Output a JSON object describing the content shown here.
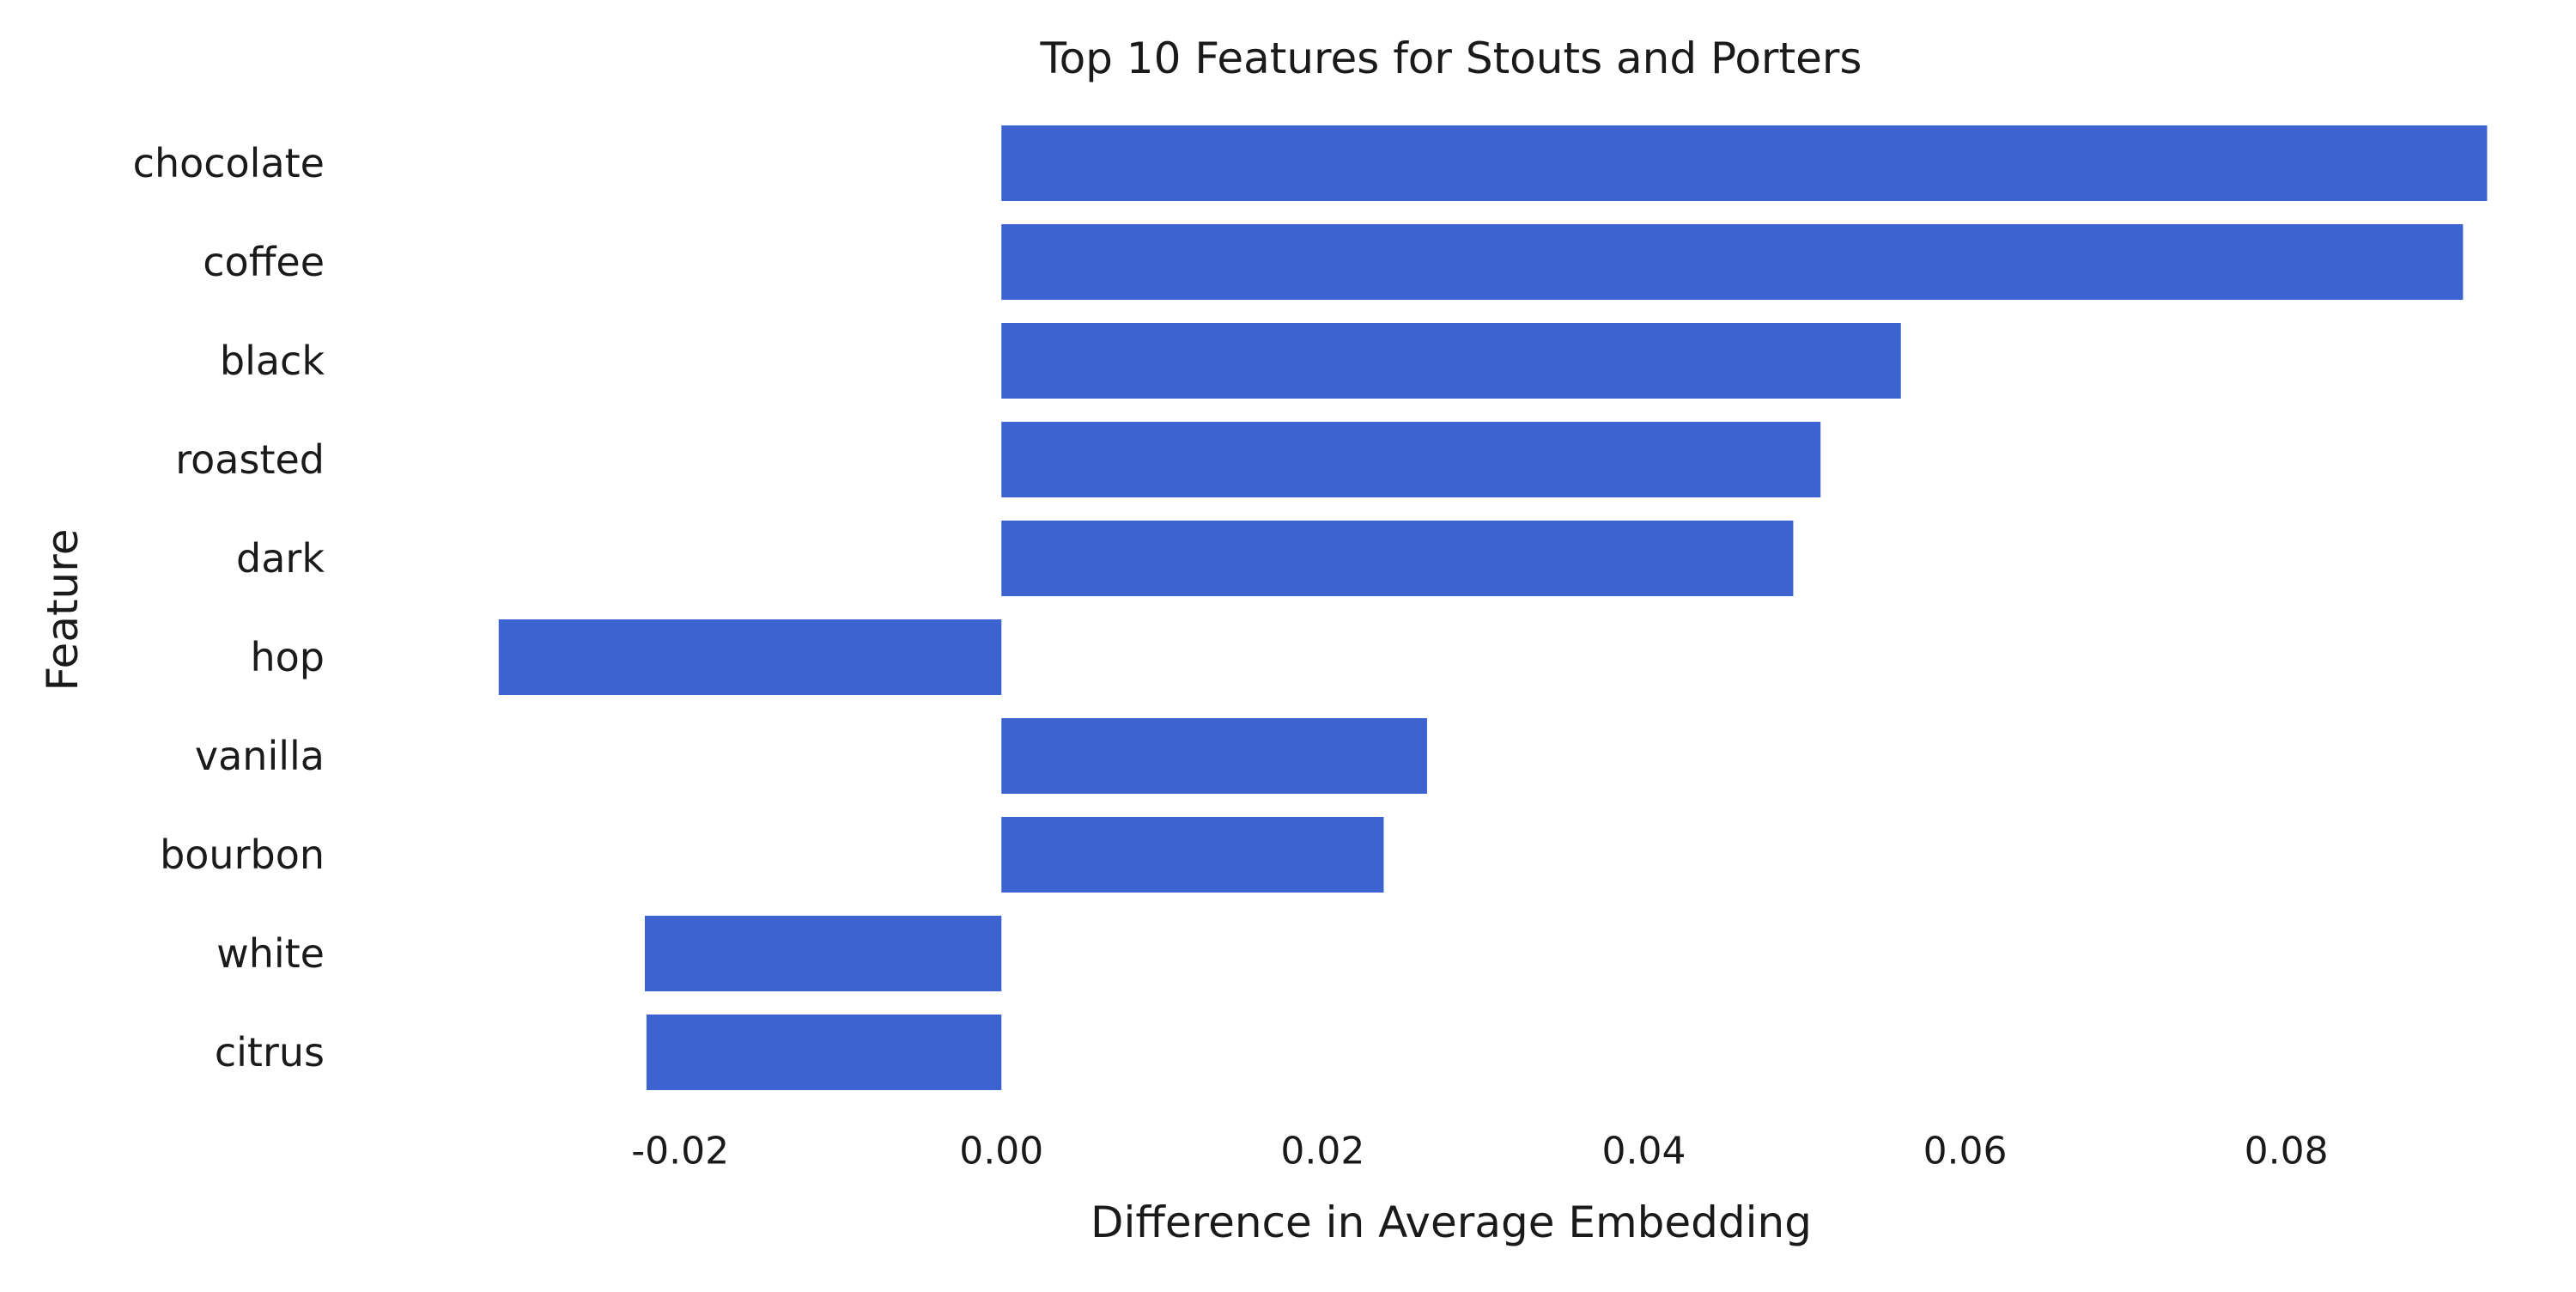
{
  "chart_data": {
    "type": "bar",
    "orientation": "horizontal",
    "title": "Top 10 Features for Stouts and Porters",
    "xlabel": "Difference in Average Embedding",
    "ylabel": "Feature",
    "categories": [
      "chocolate",
      "coffee",
      "black",
      "roasted",
      "dark",
      "hop",
      "vanilla",
      "bourbon",
      "white",
      "citrus"
    ],
    "values": [
      0.0925,
      0.091,
      0.056,
      0.051,
      0.0493,
      -0.0313,
      0.0265,
      0.0238,
      -0.0222,
      -0.0221
    ],
    "xlim": [
      -0.0415,
      0.0975
    ],
    "xticks": [
      -0.02,
      0.0,
      0.02,
      0.04,
      0.06,
      0.08
    ],
    "xtick_labels": [
      "-0.02",
      "0.00",
      "0.02",
      "0.04",
      "0.06",
      "0.08"
    ],
    "bar_color": "#3d63d1",
    "grid": false,
    "legend": "none"
  }
}
